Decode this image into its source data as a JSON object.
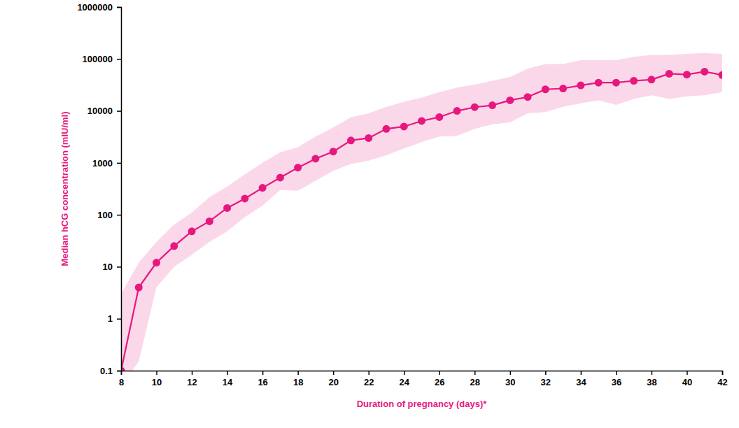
{
  "chart_data": {
    "type": "line",
    "x_label": "Duration of pregnancy (days)*",
    "y_label": "Median hCG concentration (mIU/ml)",
    "log": "y",
    "grid": false,
    "x": [
      8,
      9,
      10,
      11,
      12,
      13,
      14,
      15,
      16,
      17,
      18,
      19,
      20,
      21,
      22,
      23,
      24,
      25,
      26,
      27,
      28,
      29,
      30,
      31,
      32,
      33,
      34,
      35,
      36,
      37,
      38,
      39,
      40,
      41,
      42
    ],
    "series": [
      {
        "color": "#e8177e",
        "marker": "circle",
        "values": [
          0.1,
          4,
          12,
          25,
          48,
          75,
          135,
          205,
          330,
          520,
          810,
          1200,
          1650,
          2700,
          3000,
          4500,
          5000,
          6400,
          7600,
          10000,
          11800,
          12800,
          16000,
          18500,
          26000,
          27000,
          31000,
          35000,
          35000,
          38000,
          40000,
          52000,
          50000,
          57000,
          49000
        ],
        "lower": [
          0.05,
          0.15,
          4,
          10,
          17,
          30,
          48,
          90,
          150,
          300,
          290,
          450,
          700,
          950,
          1100,
          1400,
          1900,
          2500,
          3200,
          3300,
          4500,
          5500,
          6000,
          9000,
          9500,
          12000,
          14000,
          16000,
          13000,
          17000,
          20000,
          17000,
          19000,
          20000,
          23000
        ],
        "upper": [
          3,
          12,
          30,
          65,
          110,
          220,
          350,
          600,
          1000,
          1600,
          2000,
          3200,
          4800,
          7500,
          9000,
          12000,
          15000,
          18000,
          23000,
          28000,
          32000,
          38000,
          45000,
          65000,
          80000,
          80000,
          95000,
          95000,
          95000,
          110000,
          120000,
          120000,
          125000,
          130000,
          125000
        ]
      }
    ],
    "xlim": [
      8,
      42
    ],
    "xticks": [
      8,
      10,
      12,
      14,
      16,
      18,
      20,
      22,
      24,
      26,
      28,
      30,
      32,
      34,
      36,
      38,
      40,
      42
    ],
    "ylim": [
      0.1,
      1000000
    ],
    "yticks": [
      0.1,
      1,
      10,
      100,
      1000,
      10000,
      100000,
      1000000
    ]
  }
}
